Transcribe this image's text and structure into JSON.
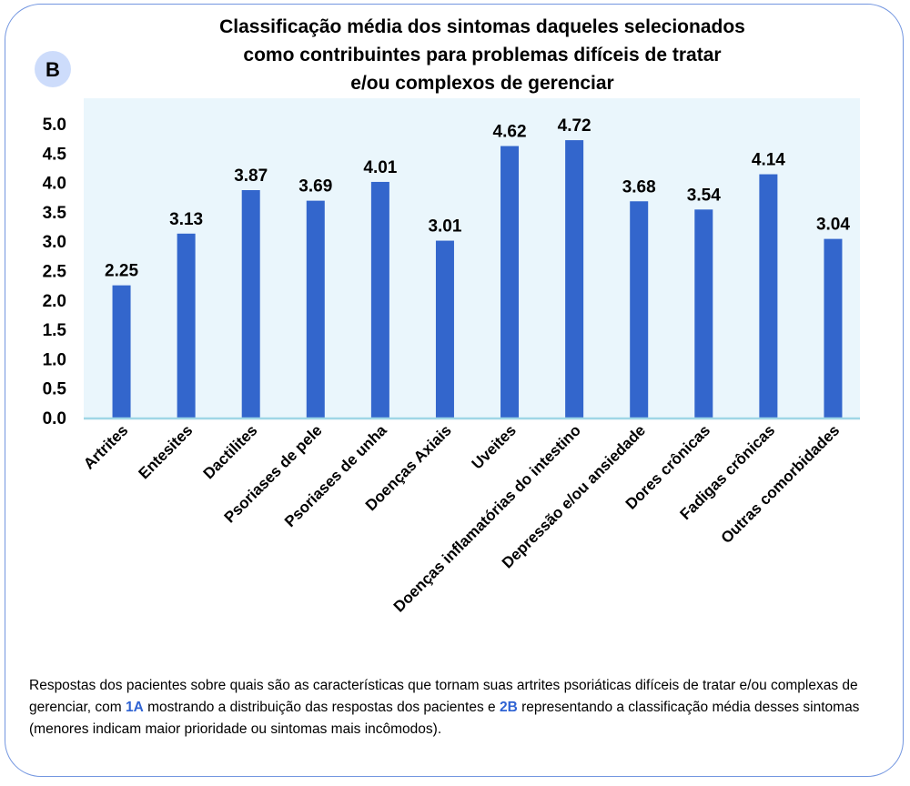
{
  "badge": "B",
  "chart_data": {
    "type": "bar",
    "title": [
      "Classificação média dos sintomas daqueles selecionados",
      "como contribuintes para problemas difíceis de tratar",
      "e/ou complexos de gerenciar"
    ],
    "categories": [
      "Artrites",
      "Entesites",
      "Dactilites",
      "Psoriases de pele",
      "Psoriases de unha",
      "Doenças Axiais",
      "Uveites",
      "Doenças inflamatórias do intestino",
      "Depressão e/ou ansiedade",
      "Dores crônicas",
      "Fadigas crônicas",
      "Outras comorbidades"
    ],
    "values": [
      2.25,
      3.13,
      3.87,
      3.69,
      4.01,
      3.01,
      4.62,
      4.72,
      3.68,
      3.54,
      4.14,
      3.04
    ],
    "data_labels": [
      "2.25",
      "3.13",
      "3.87",
      "3.69",
      "4.01",
      "3.01",
      "4.62",
      "4.72",
      "3.68",
      "3.54",
      "4.14",
      "3.04"
    ],
    "yticks": [
      "0.0",
      "0.5",
      "1.0",
      "1.5",
      "2.0",
      "2.5",
      "3.0",
      "3.5",
      "4.0",
      "4.5",
      "5.0"
    ],
    "ylim": [
      0,
      5
    ],
    "xlabel": "",
    "ylabel": "",
    "grid": false,
    "bar_color": "#3366cc",
    "plot_bg": "#eaf6fc",
    "axis_color": "#9fd6e6"
  },
  "caption": {
    "part1": "Respostas dos pacientes sobre quais são as características que tornam suas artrites psoriáticas difíceis de tratar e/ou complexas de gerenciar, com ",
    "ref1": "1A",
    "part2": " mostrando a distribuição das respostas dos pacientes e ",
    "ref2": "2B",
    "part3": " representando a classificação média desses sintomas (menores indicam maior prioridade ou sintomas mais incômodos)."
  }
}
